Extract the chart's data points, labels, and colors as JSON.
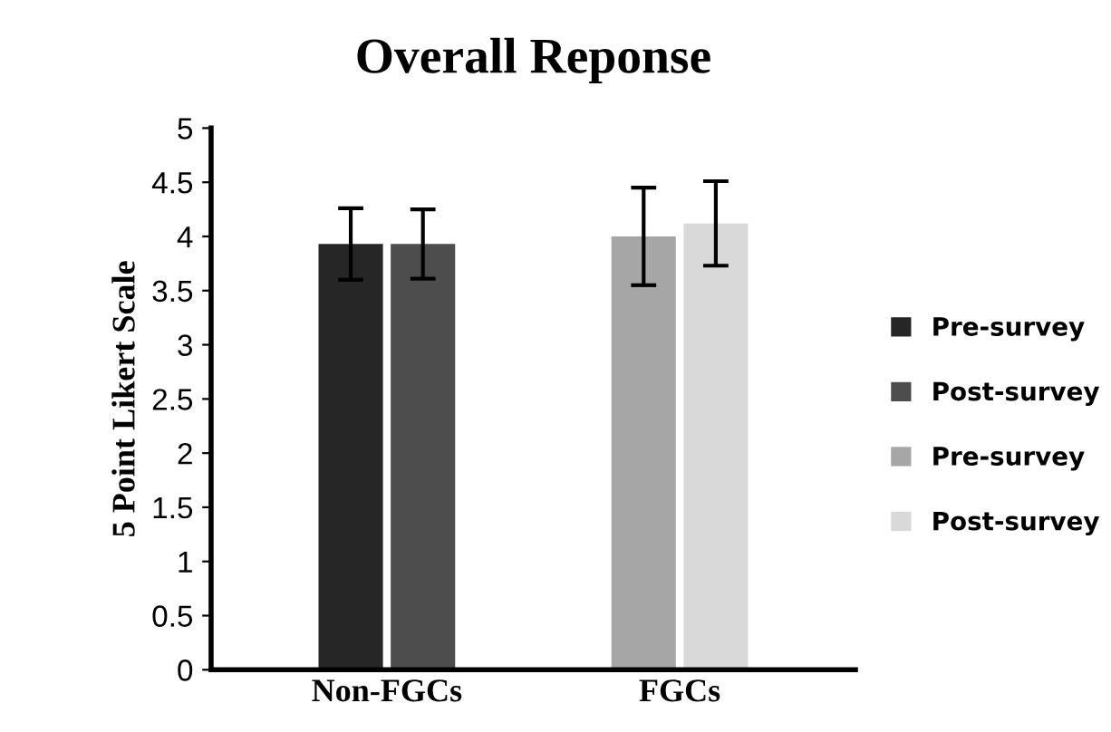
{
  "chart_data": {
    "type": "bar",
    "title": "Overall Reponse",
    "ylabel": "5 Point Likert Scale",
    "categories": [
      "Non-FGCs",
      "FGCs"
    ],
    "series": [
      {
        "name": "Pre-survey",
        "color": "#262626",
        "values": [
          3.93,
          null
        ],
        "errors": [
          0.33,
          null
        ]
      },
      {
        "name": "Post-survey",
        "color": "#4d4d4d",
        "values": [
          3.93,
          null
        ],
        "errors": [
          0.32,
          null
        ]
      },
      {
        "name": "Pre-survey",
        "color": "#a6a6a6",
        "values": [
          null,
          4.0
        ],
        "errors": [
          null,
          0.45
        ]
      },
      {
        "name": "Post-survey",
        "color": "#d9d9d9",
        "values": [
          null,
          4.12
        ],
        "errors": [
          null,
          0.39
        ]
      }
    ],
    "ylim": [
      0,
      5
    ],
    "yticks": [
      0,
      0.5,
      1,
      1.5,
      2,
      2.5,
      3,
      3.5,
      4,
      4.5,
      5
    ],
    "grid": false,
    "legend": "right"
  }
}
